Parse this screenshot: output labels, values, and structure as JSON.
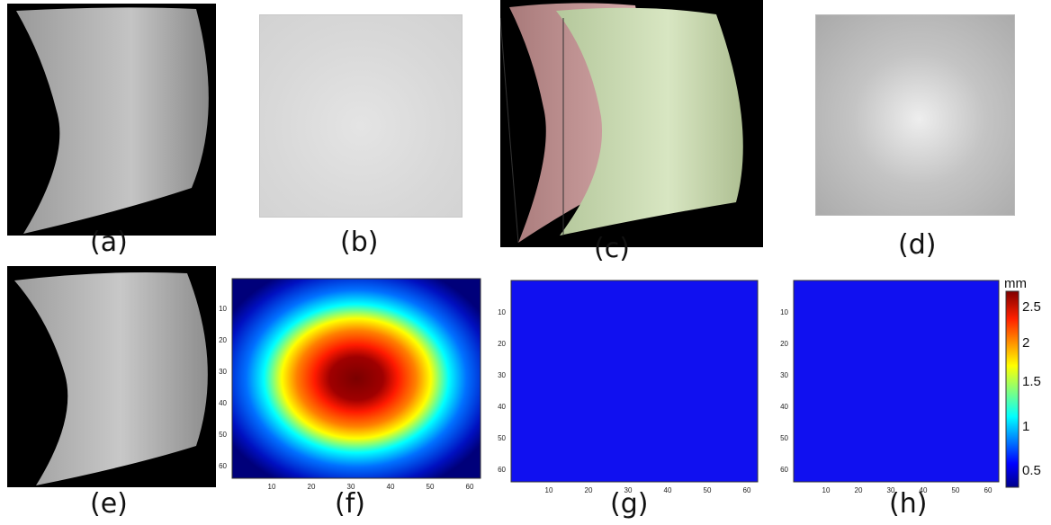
{
  "captions": {
    "a": "(a)",
    "b": "(b)",
    "c": "(c)",
    "d": "(d)",
    "e": "(e)",
    "f": "(f)",
    "g": "(g)",
    "h": "(h)"
  },
  "plots": {
    "x_ticks": [
      "10",
      "20",
      "30",
      "40",
      "50",
      "60"
    ],
    "y_ticks": [
      "10",
      "20",
      "30",
      "40",
      "50",
      "60"
    ]
  },
  "colorbar": {
    "unit": "mm",
    "ticks": [
      "2.5",
      "2",
      "1.5",
      "1",
      "0.5"
    ]
  },
  "colors": {
    "surface_background": "#000000",
    "surface_gray": "#b8b8b8",
    "surface_pink": "#c99a9a",
    "surface_green": "#cfe0b6",
    "flat_blue": "#1010f0"
  }
}
